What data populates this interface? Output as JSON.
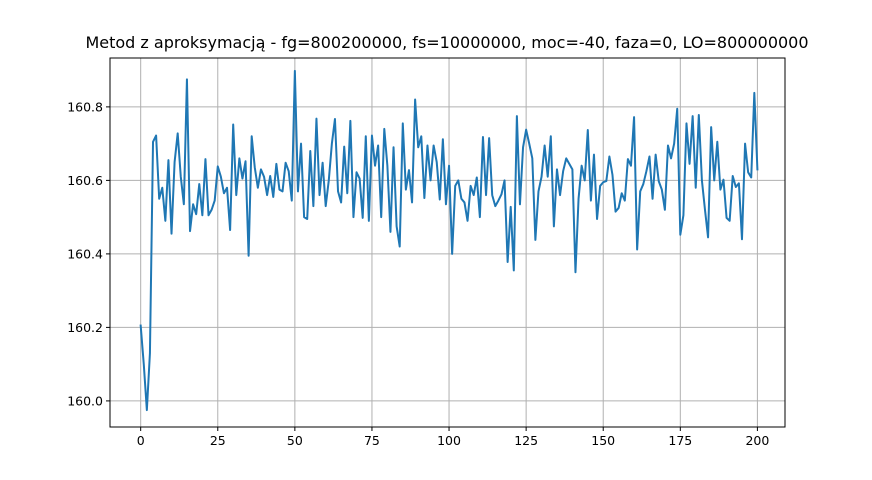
{
  "chart_data": {
    "type": "line",
    "title": "Metod z aproksymacją - fg=800200000, fs=10000000, moc=-40, faza=0, LO=800000000",
    "xlabel": "",
    "ylabel": "",
    "xlim": [
      -9.95,
      208.95
    ],
    "ylim": [
      159.929,
      160.933
    ],
    "x_ticks": [
      0,
      25,
      50,
      75,
      100,
      125,
      150,
      175,
      200
    ],
    "x_tick_labels": [
      "0",
      "25",
      "50",
      "75",
      "100",
      "125",
      "150",
      "175",
      "200"
    ],
    "y_ticks": [
      160.0,
      160.2,
      160.4,
      160.6,
      160.8
    ],
    "y_tick_labels": [
      "160.0",
      "160.2",
      "160.4",
      "160.6",
      "160.8"
    ],
    "grid": true,
    "legend": "none",
    "colors": {
      "series": "#1f77b4",
      "grid": "#b0b0b0",
      "background": "#ffffff"
    },
    "series": [
      {
        "x_start": 0,
        "x_step": 1,
        "values": [
          160.205,
          160.1,
          159.975,
          160.13,
          160.705,
          160.722,
          160.55,
          160.58,
          160.49,
          160.655,
          160.455,
          160.65,
          160.728,
          160.61,
          160.535,
          160.875,
          160.462,
          160.535,
          160.508,
          160.59,
          160.505,
          160.658,
          160.505,
          160.52,
          160.545,
          160.638,
          160.61,
          160.565,
          160.58,
          160.465,
          160.752,
          160.56,
          160.66,
          160.605,
          160.652,
          160.395,
          160.72,
          160.635,
          160.58,
          160.63,
          160.61,
          160.56,
          160.612,
          160.555,
          160.645,
          160.575,
          160.57,
          160.648,
          160.625,
          160.545,
          160.898,
          160.57,
          160.7,
          160.5,
          160.495,
          160.68,
          160.53,
          160.768,
          160.56,
          160.648,
          160.53,
          160.6,
          160.7,
          160.767,
          160.57,
          160.54,
          160.692,
          160.565,
          160.762,
          160.5,
          160.622,
          160.605,
          160.498,
          160.72,
          160.49,
          160.722,
          160.64,
          160.695,
          160.5,
          160.74,
          160.64,
          160.46,
          160.69,
          160.475,
          160.42,
          160.755,
          160.575,
          160.628,
          160.54,
          160.82,
          160.69,
          160.72,
          160.552,
          160.695,
          160.6,
          160.695,
          160.65,
          160.548,
          160.712,
          160.535,
          160.64,
          160.4,
          160.585,
          160.6,
          160.55,
          160.54,
          160.49,
          160.585,
          160.56,
          160.608,
          160.5,
          160.718,
          160.56,
          160.715,
          160.56,
          160.53,
          160.545,
          160.562,
          160.6,
          160.378,
          160.528,
          160.355,
          160.775,
          160.535,
          160.69,
          160.738,
          160.7,
          160.66,
          160.438,
          160.57,
          160.61,
          160.695,
          160.61,
          160.72,
          160.475,
          160.63,
          160.56,
          160.625,
          160.66,
          160.645,
          160.63,
          160.35,
          160.55,
          160.64,
          160.6,
          160.737,
          160.545,
          160.67,
          160.495,
          160.585,
          160.595,
          160.598,
          160.665,
          160.615,
          160.515,
          160.525,
          160.565,
          160.545,
          160.658,
          160.64,
          160.772,
          160.412,
          160.57,
          160.59,
          160.625,
          160.665,
          160.55,
          160.67,
          160.598,
          160.575,
          160.52,
          160.695,
          160.66,
          160.7,
          160.795,
          160.452,
          160.505,
          160.755,
          160.645,
          160.775,
          160.58,
          160.778,
          160.6,
          160.52,
          160.445,
          160.745,
          160.6,
          160.705,
          160.575,
          160.602,
          160.498,
          160.49,
          160.612,
          160.582,
          160.592,
          160.44,
          160.7,
          160.622,
          160.608,
          160.838,
          160.63
        ]
      }
    ]
  }
}
